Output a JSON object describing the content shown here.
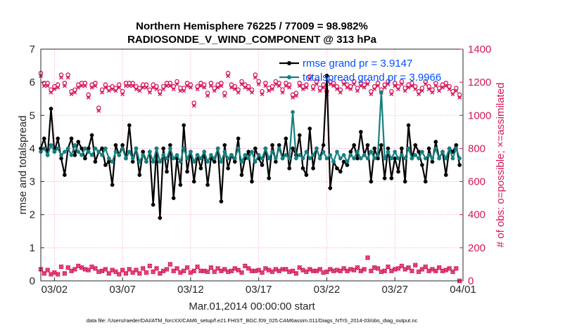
{
  "chart_data": {
    "type": "line",
    "title_line1": "Northern Hemisphere 76225 / 77009 = 98.982%",
    "title_line2": "RADIOSONDE_V_WIND_COMPONENT @ 313 hPa",
    "xlabel": "Mar.01,2014 00:00:00 start",
    "ylabel_left": "rmse and totalspread",
    "ylabel_right": "# of obs: o=possible; ×=assimilated",
    "footnote": "data file: /Users/raeder/DAI/ATM_forcXX/CAM6_setup/f.e21.FHIST_BGC.f09_025.CAM6assim.011/Diags_NTrS_2014-03/obs_diag_output.nc",
    "xlim": [
      0,
      124
    ],
    "ylim_left": [
      0,
      7
    ],
    "ylim_right": [
      0,
      1400
    ],
    "yticks_left": [
      0,
      1,
      2,
      3,
      4,
      5,
      6,
      7
    ],
    "yticks_right": [
      0,
      200,
      400,
      600,
      800,
      1000,
      1200,
      1400
    ],
    "xticks": [
      {
        "pos": 4,
        "label": "03/02"
      },
      {
        "pos": 24,
        "label": "03/07"
      },
      {
        "pos": 44,
        "label": "03/12"
      },
      {
        "pos": 64,
        "label": "03/17"
      },
      {
        "pos": 84,
        "label": "03/22"
      },
      {
        "pos": 104,
        "label": "03/27"
      },
      {
        "pos": 124,
        "label": "04/01"
      }
    ],
    "colors": {
      "rmse": "#000000",
      "spread": "#168080",
      "obs": "#d4145a",
      "legend_text": "#0050ff"
    },
    "series": [
      {
        "name": "rmse",
        "legend": "rmse grand pr = 3.9147",
        "values": [
          4.0,
          4.3,
          3.8,
          5.2,
          3.9,
          4.3,
          3.7,
          3.2,
          4.0,
          4.3,
          3.8,
          4.2,
          4.0,
          3.7,
          4.0,
          4.4,
          3.6,
          3.9,
          4.0,
          3.5,
          3.6,
          2.9,
          4.1,
          3.8,
          4.1,
          3.7,
          4.7,
          3.6,
          4.0,
          3.2,
          3.9,
          3.6,
          3.9,
          2.3,
          4.0,
          1.9,
          4.0,
          3.3,
          4.1,
          2.5,
          3.7,
          2.9,
          4.7,
          3.3,
          3.9,
          3.0,
          3.8,
          3.4,
          3.9,
          2.9,
          3.7,
          3.6,
          4.0,
          2.4,
          4.1,
          3.4,
          3.8,
          3.6,
          4.3,
          3.2,
          3.7,
          3.9,
          3.0,
          4.0,
          3.7,
          3.5,
          4.0,
          3.1,
          4.1,
          3.6,
          4.1,
          3.7,
          4.3,
          3.4,
          4.0,
          3.8,
          4.4,
          3.4,
          3.2,
          4.6,
          3.4,
          4.0,
          3.7,
          4.1,
          6.2,
          2.8,
          3.6,
          3.4,
          3.3,
          3.6,
          3.5,
          3.9,
          4.1,
          3.7,
          4.5,
          3.8,
          4.1,
          3.0,
          4.0,
          3.7,
          4.1,
          3.1,
          4.0,
          3.1,
          3.7,
          3.3,
          4.0,
          3.0,
          4.7,
          3.7,
          4.1,
          3.9,
          3.5,
          3.0,
          4.0,
          3.6,
          4.2,
          3.7,
          3.9,
          3.2,
          4.0,
          3.9,
          4.1,
          3.5
        ]
      },
      {
        "name": "totalspread",
        "legend": "totalspread grand pr = 3.9966",
        "values": [
          3.9,
          4.0,
          3.8,
          4.1,
          3.9,
          4.0,
          3.8,
          3.9,
          4.0,
          3.8,
          4.1,
          3.9,
          3.8,
          4.0,
          3.9,
          3.8,
          4.0,
          3.9,
          3.8,
          4.0,
          3.7,
          3.6,
          3.9,
          3.8,
          4.0,
          3.7,
          3.9,
          3.7,
          4.0,
          3.6,
          3.8,
          3.6,
          3.9,
          3.6,
          4.0,
          3.6,
          3.8,
          3.7,
          4.0,
          3.7,
          3.8,
          3.6,
          4.0,
          3.7,
          3.9,
          3.6,
          3.8,
          3.7,
          3.9,
          3.6,
          3.8,
          3.7,
          4.0,
          3.6,
          3.9,
          3.7,
          3.8,
          3.7,
          4.0,
          3.6,
          3.8,
          3.7,
          3.9,
          3.6,
          3.8,
          3.7,
          4.0,
          3.7,
          3.9,
          3.7,
          4.0,
          3.7,
          3.8,
          3.7,
          5.1,
          3.7,
          3.8,
          3.7,
          3.9,
          3.7,
          3.8,
          4.0,
          3.7,
          3.9,
          3.7,
          3.8,
          3.6,
          3.9,
          3.7,
          3.8,
          3.6,
          3.8,
          3.7,
          3.9,
          3.7,
          3.8,
          3.7,
          3.9,
          3.7,
          3.8,
          5.7,
          3.7,
          3.9,
          3.7,
          3.9,
          3.7,
          3.8,
          3.7,
          4.0,
          3.7,
          3.8,
          3.7,
          3.9,
          3.7,
          3.8,
          3.7,
          4.0,
          3.7,
          3.9,
          3.7,
          4.0,
          3.7,
          4.0,
          3.7
        ]
      },
      {
        "name": "obs_possible",
        "values": [
          1250,
          1190,
          1190,
          1150,
          1170,
          1180,
          1240,
          1190,
          1240,
          1140,
          1150,
          1180,
          1190,
          1190,
          1120,
          1180,
          1190,
          1040,
          1150,
          1180,
          1160,
          1170,
          1160,
          1180,
          1140,
          1190,
          1190,
          1190,
          1170,
          1160,
          1180,
          1180,
          1150,
          1180,
          1170,
          1140,
          1170,
          1190,
          1190,
          1170,
          1200,
          1160,
          1160,
          1190,
          1180,
          1070,
          1170,
          1190,
          1180,
          1130,
          1190,
          1160,
          1180,
          1190,
          1130,
          1250,
          1180,
          1170,
          1150,
          1200,
          1180,
          1170,
          1150,
          1240,
          1200,
          1140,
          1190,
          1160,
          1170,
          1200,
          1190,
          1150,
          1190,
          1180,
          1120,
          1130,
          1190,
          1170,
          1180,
          1230,
          1170,
          1200,
          1160,
          1180,
          1140,
          1200,
          1190,
          1170,
          1150,
          1200,
          1180,
          1170,
          1200,
          1160,
          1190,
          1180,
          1200,
          1140,
          1170,
          1190,
          1150,
          1180,
          1200,
          1140,
          1190,
          1170,
          1200,
          1160,
          1180,
          1190,
          1170,
          1140,
          1160,
          1200,
          1170,
          1150,
          1190,
          1160,
          1180,
          1190,
          1170,
          1140,
          1160,
          1120
        ]
      },
      {
        "name": "obs_assimilated",
        "values": [
          70,
          45,
          65,
          40,
          50,
          40,
          85,
          45,
          80,
          60,
          70,
          90,
          80,
          70,
          65,
          85,
          75,
          55,
          60,
          70,
          45,
          65,
          55,
          40,
          65,
          45,
          70,
          50,
          65,
          45,
          75,
          50,
          90,
          55,
          75,
          45,
          60,
          70,
          100,
          60,
          75,
          50,
          60,
          80,
          50,
          60,
          85,
          60,
          60,
          55,
          80,
          55,
          75,
          60,
          70,
          55,
          60,
          75,
          65,
          50,
          90,
          75,
          60,
          60,
          65,
          50,
          75,
          65,
          55,
          70,
          60,
          70,
          70,
          55,
          60,
          45,
          80,
          65,
          55,
          70,
          60,
          60,
          70,
          50,
          55,
          70,
          60,
          65,
          60,
          75,
          60,
          70,
          65,
          80,
          60,
          70,
          140,
          60,
          80,
          75,
          55,
          60,
          85,
          60,
          70,
          75,
          90,
          70,
          80,
          60,
          95,
          55,
          70,
          85,
          60,
          70,
          60,
          80,
          60,
          65,
          75,
          55,
          75,
          0
        ]
      }
    ]
  }
}
